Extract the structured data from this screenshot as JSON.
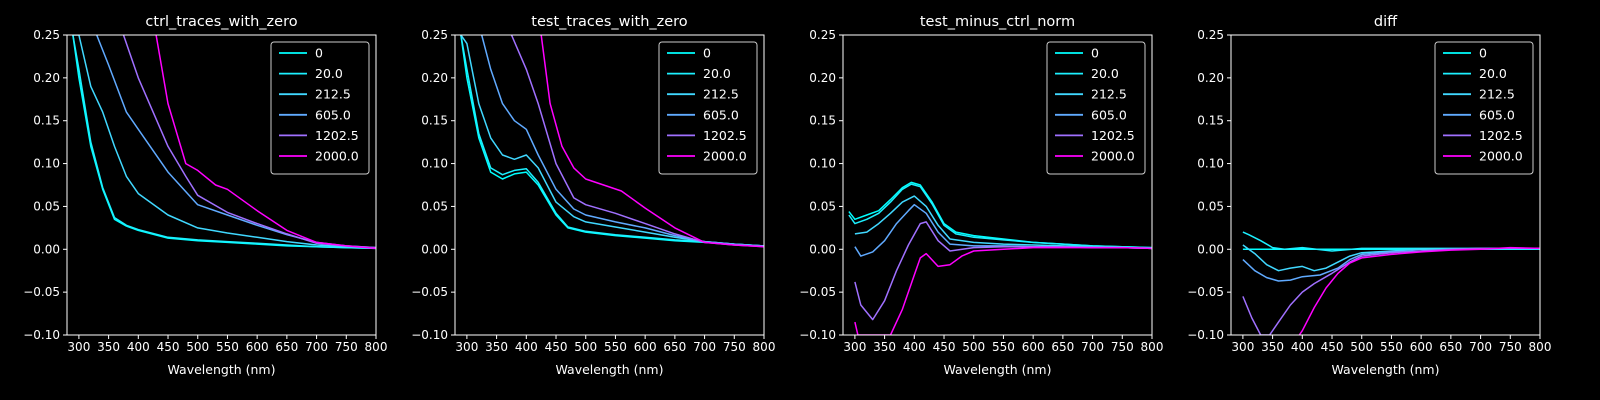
{
  "figure": {
    "background": "#000000",
    "foreground": "#ffffff"
  },
  "chart_data": [
    {
      "type": "line",
      "title": "ctrl_traces_with_zero",
      "xlabel": "Wavelength (nm)",
      "ylabel": "",
      "xlim": [
        280,
        800
      ],
      "ylim": [
        -0.1,
        0.25
      ],
      "xticks": [
        300,
        350,
        400,
        450,
        500,
        550,
        600,
        650,
        700,
        750,
        800
      ],
      "yticks": [
        -0.1,
        -0.05,
        0.0,
        0.05,
        0.1,
        0.15,
        0.2,
        0.25
      ],
      "ytick_labels": [
        "−0.10",
        "−0.05",
        "0.00",
        "0.05",
        "0.10",
        "0.15",
        "0.20",
        "0.25"
      ],
      "grid": false,
      "legend_position": "top-right",
      "series": [
        {
          "name": "0",
          "color": "#00ffff",
          "x": [
            290,
            300,
            320,
            340,
            360,
            380,
            400,
            450,
            500,
            550,
            600,
            650,
            700,
            750,
            800
          ],
          "y": [
            0.25,
            0.2,
            0.12,
            0.07,
            0.035,
            0.027,
            0.022,
            0.013,
            0.01,
            0.008,
            0.006,
            0.004,
            0.003,
            0.002,
            0.001
          ]
        },
        {
          "name": "20.0",
          "color": "#1cf0ff",
          "x": [
            290,
            300,
            320,
            340,
            360,
            380,
            400,
            450,
            500,
            550,
            600,
            650,
            700,
            750,
            800
          ],
          "y": [
            0.25,
            0.21,
            0.125,
            0.072,
            0.037,
            0.028,
            0.023,
            0.014,
            0.011,
            0.009,
            0.007,
            0.005,
            0.003,
            0.002,
            0.001
          ]
        },
        {
          "name": "212.5",
          "color": "#40d8ff",
          "x": [
            290,
            300,
            320,
            340,
            360,
            380,
            400,
            450,
            500,
            550,
            600,
            650,
            700,
            750,
            800
          ],
          "y": [
            0.25,
            0.25,
            0.19,
            0.16,
            0.12,
            0.085,
            0.065,
            0.04,
            0.025,
            0.019,
            0.014,
            0.009,
            0.005,
            0.003,
            0.002
          ]
        },
        {
          "name": "605.0",
          "color": "#60aaff",
          "x": [
            330,
            350,
            380,
            400,
            450,
            500,
            550,
            600,
            650,
            700,
            750,
            800
          ],
          "y": [
            0.25,
            0.215,
            0.16,
            0.14,
            0.09,
            0.052,
            0.04,
            0.028,
            0.017,
            0.008,
            0.004,
            0.002
          ]
        },
        {
          "name": "1202.5",
          "color": "#a070ff",
          "x": [
            375,
            400,
            450,
            480,
            500,
            550,
            600,
            650,
            700,
            750,
            800
          ],
          "y": [
            0.25,
            0.2,
            0.12,
            0.085,
            0.063,
            0.043,
            0.03,
            0.018,
            0.007,
            0.004,
            0.002
          ]
        },
        {
          "name": "2000.0",
          "color": "#ff00ff",
          "x": [
            430,
            450,
            480,
            500,
            530,
            550,
            600,
            650,
            700,
            750,
            800
          ],
          "y": [
            0.25,
            0.17,
            0.1,
            0.092,
            0.075,
            0.07,
            0.045,
            0.022,
            0.008,
            0.004,
            0.001
          ]
        }
      ]
    },
    {
      "type": "line",
      "title": "test_traces_with_zero",
      "xlabel": "Wavelength (nm)",
      "ylabel": "",
      "xlim": [
        280,
        800
      ],
      "ylim": [
        -0.1,
        0.25
      ],
      "xticks": [
        300,
        350,
        400,
        450,
        500,
        550,
        600,
        650,
        700,
        750,
        800
      ],
      "yticks": [
        -0.1,
        -0.05,
        0.0,
        0.05,
        0.1,
        0.15,
        0.2,
        0.25
      ],
      "ytick_labels": [
        "−0.10",
        "−0.05",
        "0.00",
        "0.05",
        "0.10",
        "0.15",
        "0.20",
        "0.25"
      ],
      "grid": false,
      "legend_position": "top-right",
      "series": [
        {
          "name": "0",
          "color": "#00ffff",
          "x": [
            290,
            300,
            320,
            340,
            360,
            380,
            400,
            420,
            450,
            470,
            500,
            550,
            600,
            650,
            700,
            750,
            800
          ],
          "y": [
            0.25,
            0.2,
            0.13,
            0.09,
            0.082,
            0.088,
            0.09,
            0.075,
            0.04,
            0.025,
            0.02,
            0.016,
            0.013,
            0.01,
            0.008,
            0.006,
            0.004
          ]
        },
        {
          "name": "20.0",
          "color": "#1cf0ff",
          "x": [
            290,
            300,
            320,
            340,
            360,
            380,
            400,
            420,
            450,
            470,
            500,
            550,
            600,
            650,
            700,
            750,
            800
          ],
          "y": [
            0.25,
            0.21,
            0.135,
            0.095,
            0.087,
            0.092,
            0.094,
            0.078,
            0.042,
            0.026,
            0.021,
            0.017,
            0.014,
            0.011,
            0.009,
            0.006,
            0.004
          ]
        },
        {
          "name": "212.5",
          "color": "#40d8ff",
          "x": [
            290,
            300,
            320,
            340,
            360,
            380,
            400,
            420,
            450,
            480,
            500,
            550,
            600,
            650,
            700,
            750,
            800
          ],
          "y": [
            0.25,
            0.24,
            0.17,
            0.13,
            0.11,
            0.105,
            0.11,
            0.095,
            0.055,
            0.038,
            0.032,
            0.026,
            0.02,
            0.014,
            0.009,
            0.006,
            0.004
          ]
        },
        {
          "name": "605.0",
          "color": "#60aaff",
          "x": [
            325,
            340,
            360,
            380,
            400,
            420,
            450,
            480,
            500,
            550,
            600,
            650,
            700,
            750,
            800
          ],
          "y": [
            0.25,
            0.21,
            0.17,
            0.15,
            0.14,
            0.11,
            0.07,
            0.047,
            0.04,
            0.032,
            0.025,
            0.016,
            0.009,
            0.006,
            0.004
          ]
        },
        {
          "name": "1202.5",
          "color": "#a070ff",
          "x": [
            375,
            400,
            420,
            450,
            480,
            500,
            550,
            600,
            650,
            700,
            750,
            800
          ],
          "y": [
            0.25,
            0.21,
            0.17,
            0.1,
            0.06,
            0.052,
            0.042,
            0.03,
            0.018,
            0.008,
            0.005,
            0.003
          ]
        },
        {
          "name": "2000.0",
          "color": "#ff00ff",
          "x": [
            425,
            440,
            460,
            480,
            500,
            530,
            560,
            600,
            650,
            700,
            750,
            800
          ],
          "y": [
            0.25,
            0.17,
            0.12,
            0.095,
            0.082,
            0.075,
            0.068,
            0.048,
            0.025,
            0.008,
            0.005,
            0.003
          ]
        }
      ]
    },
    {
      "type": "line",
      "title": "test_minus_ctrl_norm",
      "xlabel": "Wavelength (nm)",
      "ylabel": "",
      "xlim": [
        280,
        800
      ],
      "ylim": [
        -0.1,
        0.25
      ],
      "xticks": [
        300,
        350,
        400,
        450,
        500,
        550,
        600,
        650,
        700,
        750,
        800
      ],
      "yticks": [
        -0.1,
        -0.05,
        0.0,
        0.05,
        0.1,
        0.15,
        0.2,
        0.25
      ],
      "ytick_labels": [
        "−0.10",
        "−0.05",
        "0.00",
        "0.05",
        "0.10",
        "0.15",
        "0.20",
        "0.25"
      ],
      "grid": false,
      "legend_position": "top-right",
      "series": [
        {
          "name": "0",
          "color": "#00ffff",
          "x": [
            290,
            300,
            320,
            340,
            360,
            380,
            395,
            410,
            430,
            450,
            470,
            500,
            550,
            600,
            650,
            700,
            750,
            800
          ],
          "y": [
            0.044,
            0.035,
            0.04,
            0.045,
            0.058,
            0.072,
            0.078,
            0.075,
            0.055,
            0.03,
            0.02,
            0.016,
            0.012,
            0.008,
            0.006,
            0.004,
            0.003,
            0.002
          ]
        },
        {
          "name": "20.0",
          "color": "#1cf0ff",
          "x": [
            290,
            300,
            320,
            340,
            360,
            380,
            395,
            410,
            430,
            450,
            470,
            500,
            550,
            600,
            650,
            700,
            750,
            800
          ],
          "y": [
            0.04,
            0.03,
            0.035,
            0.042,
            0.055,
            0.07,
            0.076,
            0.073,
            0.053,
            0.028,
            0.018,
            0.014,
            0.011,
            0.008,
            0.006,
            0.004,
            0.003,
            0.002
          ]
        },
        {
          "name": "212.5",
          "color": "#40d8ff",
          "x": [
            300,
            320,
            340,
            360,
            380,
            400,
            420,
            440,
            460,
            500,
            550,
            600,
            650,
            700,
            750,
            800
          ],
          "y": [
            0.018,
            0.02,
            0.03,
            0.042,
            0.055,
            0.062,
            0.05,
            0.028,
            0.012,
            0.008,
            0.006,
            0.005,
            0.004,
            0.003,
            0.002,
            0.001
          ]
        },
        {
          "name": "605.0",
          "color": "#60aaff",
          "x": [
            300,
            310,
            330,
            350,
            370,
            390,
            400,
            420,
            440,
            460,
            500,
            550,
            600,
            650,
            700,
            750,
            800
          ],
          "y": [
            0.003,
            -0.008,
            -0.003,
            0.01,
            0.03,
            0.045,
            0.052,
            0.042,
            0.02,
            0.006,
            0.004,
            0.004,
            0.003,
            0.003,
            0.002,
            0.002,
            0.001
          ]
        },
        {
          "name": "1202.5",
          "color": "#a070ff",
          "x": [
            300,
            310,
            330,
            350,
            370,
            390,
            410,
            420,
            440,
            460,
            500,
            550,
            600,
            650,
            700,
            750,
            800
          ],
          "y": [
            -0.038,
            -0.065,
            -0.082,
            -0.06,
            -0.025,
            0.005,
            0.03,
            0.032,
            0.01,
            -0.002,
            0.002,
            0.003,
            0.003,
            0.003,
            0.002,
            0.002,
            0.001
          ]
        },
        {
          "name": "2000.0",
          "color": "#ff00ff",
          "x": [
            300,
            305,
            360,
            380,
            400,
            410,
            420,
            440,
            460,
            480,
            500,
            550,
            600,
            650,
            700,
            750,
            800
          ],
          "y": [
            -0.085,
            -0.1,
            -0.1,
            -0.07,
            -0.03,
            -0.01,
            -0.005,
            -0.02,
            -0.018,
            -0.008,
            -0.002,
            0.0,
            0.002,
            0.002,
            0.002,
            0.002,
            0.001
          ]
        }
      ]
    },
    {
      "type": "line",
      "title": "diff",
      "xlabel": "Wavelength (nm)",
      "ylabel": "",
      "xlim": [
        280,
        800
      ],
      "ylim": [
        -0.1,
        0.25
      ],
      "xticks": [
        300,
        350,
        400,
        450,
        500,
        550,
        600,
        650,
        700,
        750,
        800
      ],
      "yticks": [
        -0.1,
        -0.05,
        0.0,
        0.05,
        0.1,
        0.15,
        0.2,
        0.25
      ],
      "ytick_labels": [
        "−0.10",
        "−0.05",
        "0.00",
        "0.05",
        "0.10",
        "0.15",
        "0.20",
        "0.25"
      ],
      "grid": false,
      "legend_position": "top-right",
      "series": [
        {
          "name": "0",
          "color": "#00ffff",
          "x": [
            300,
            800
          ],
          "y": [
            0.0,
            0.0
          ]
        },
        {
          "name": "20.0",
          "color": "#1cf0ff",
          "x": [
            300,
            310,
            330,
            350,
            370,
            400,
            450,
            500,
            550,
            600,
            650,
            700,
            750,
            800
          ],
          "y": [
            0.02,
            0.017,
            0.01,
            0.002,
            0.0,
            0.002,
            -0.002,
            0.001,
            0.001,
            0.001,
            0.001,
            0.001,
            0.001,
            0.001
          ]
        },
        {
          "name": "212.5",
          "color": "#40d8ff",
          "x": [
            300,
            320,
            340,
            360,
            380,
            400,
            420,
            440,
            460,
            480,
            500,
            550,
            600,
            650,
            700,
            750,
            800
          ],
          "y": [
            0.005,
            -0.005,
            -0.018,
            -0.025,
            -0.022,
            -0.02,
            -0.025,
            -0.022,
            -0.015,
            -0.008,
            -0.004,
            -0.002,
            0.0,
            0.0,
            0.001,
            0.001,
            0.001
          ]
        },
        {
          "name": "605.0",
          "color": "#60aaff",
          "x": [
            300,
            320,
            340,
            360,
            380,
            400,
            430,
            460,
            480,
            500,
            550,
            600,
            650,
            700,
            750,
            800
          ],
          "y": [
            -0.012,
            -0.025,
            -0.033,
            -0.037,
            -0.036,
            -0.032,
            -0.03,
            -0.022,
            -0.012,
            -0.006,
            -0.003,
            -0.002,
            0.0,
            0.0,
            0.001,
            0.001
          ]
        },
        {
          "name": "1202.5",
          "color": "#a070ff",
          "x": [
            300,
            315,
            330,
            345,
            360,
            380,
            400,
            420,
            450,
            480,
            500,
            550,
            600,
            650,
            700,
            750,
            800
          ],
          "y": [
            -0.055,
            -0.08,
            -0.1,
            -0.1,
            -0.085,
            -0.065,
            -0.05,
            -0.04,
            -0.028,
            -0.015,
            -0.008,
            -0.004,
            -0.002,
            0.0,
            0.001,
            0.001,
            0.001
          ]
        },
        {
          "name": "2000.0",
          "color": "#ff00ff",
          "x": [
            395,
            400,
            420,
            440,
            460,
            480,
            500,
            550,
            600,
            650,
            700,
            750,
            800
          ],
          "y": [
            -0.1,
            -0.095,
            -0.068,
            -0.045,
            -0.028,
            -0.016,
            -0.01,
            -0.006,
            -0.003,
            -0.001,
            0.0,
            0.002,
            0.001
          ]
        }
      ]
    }
  ]
}
